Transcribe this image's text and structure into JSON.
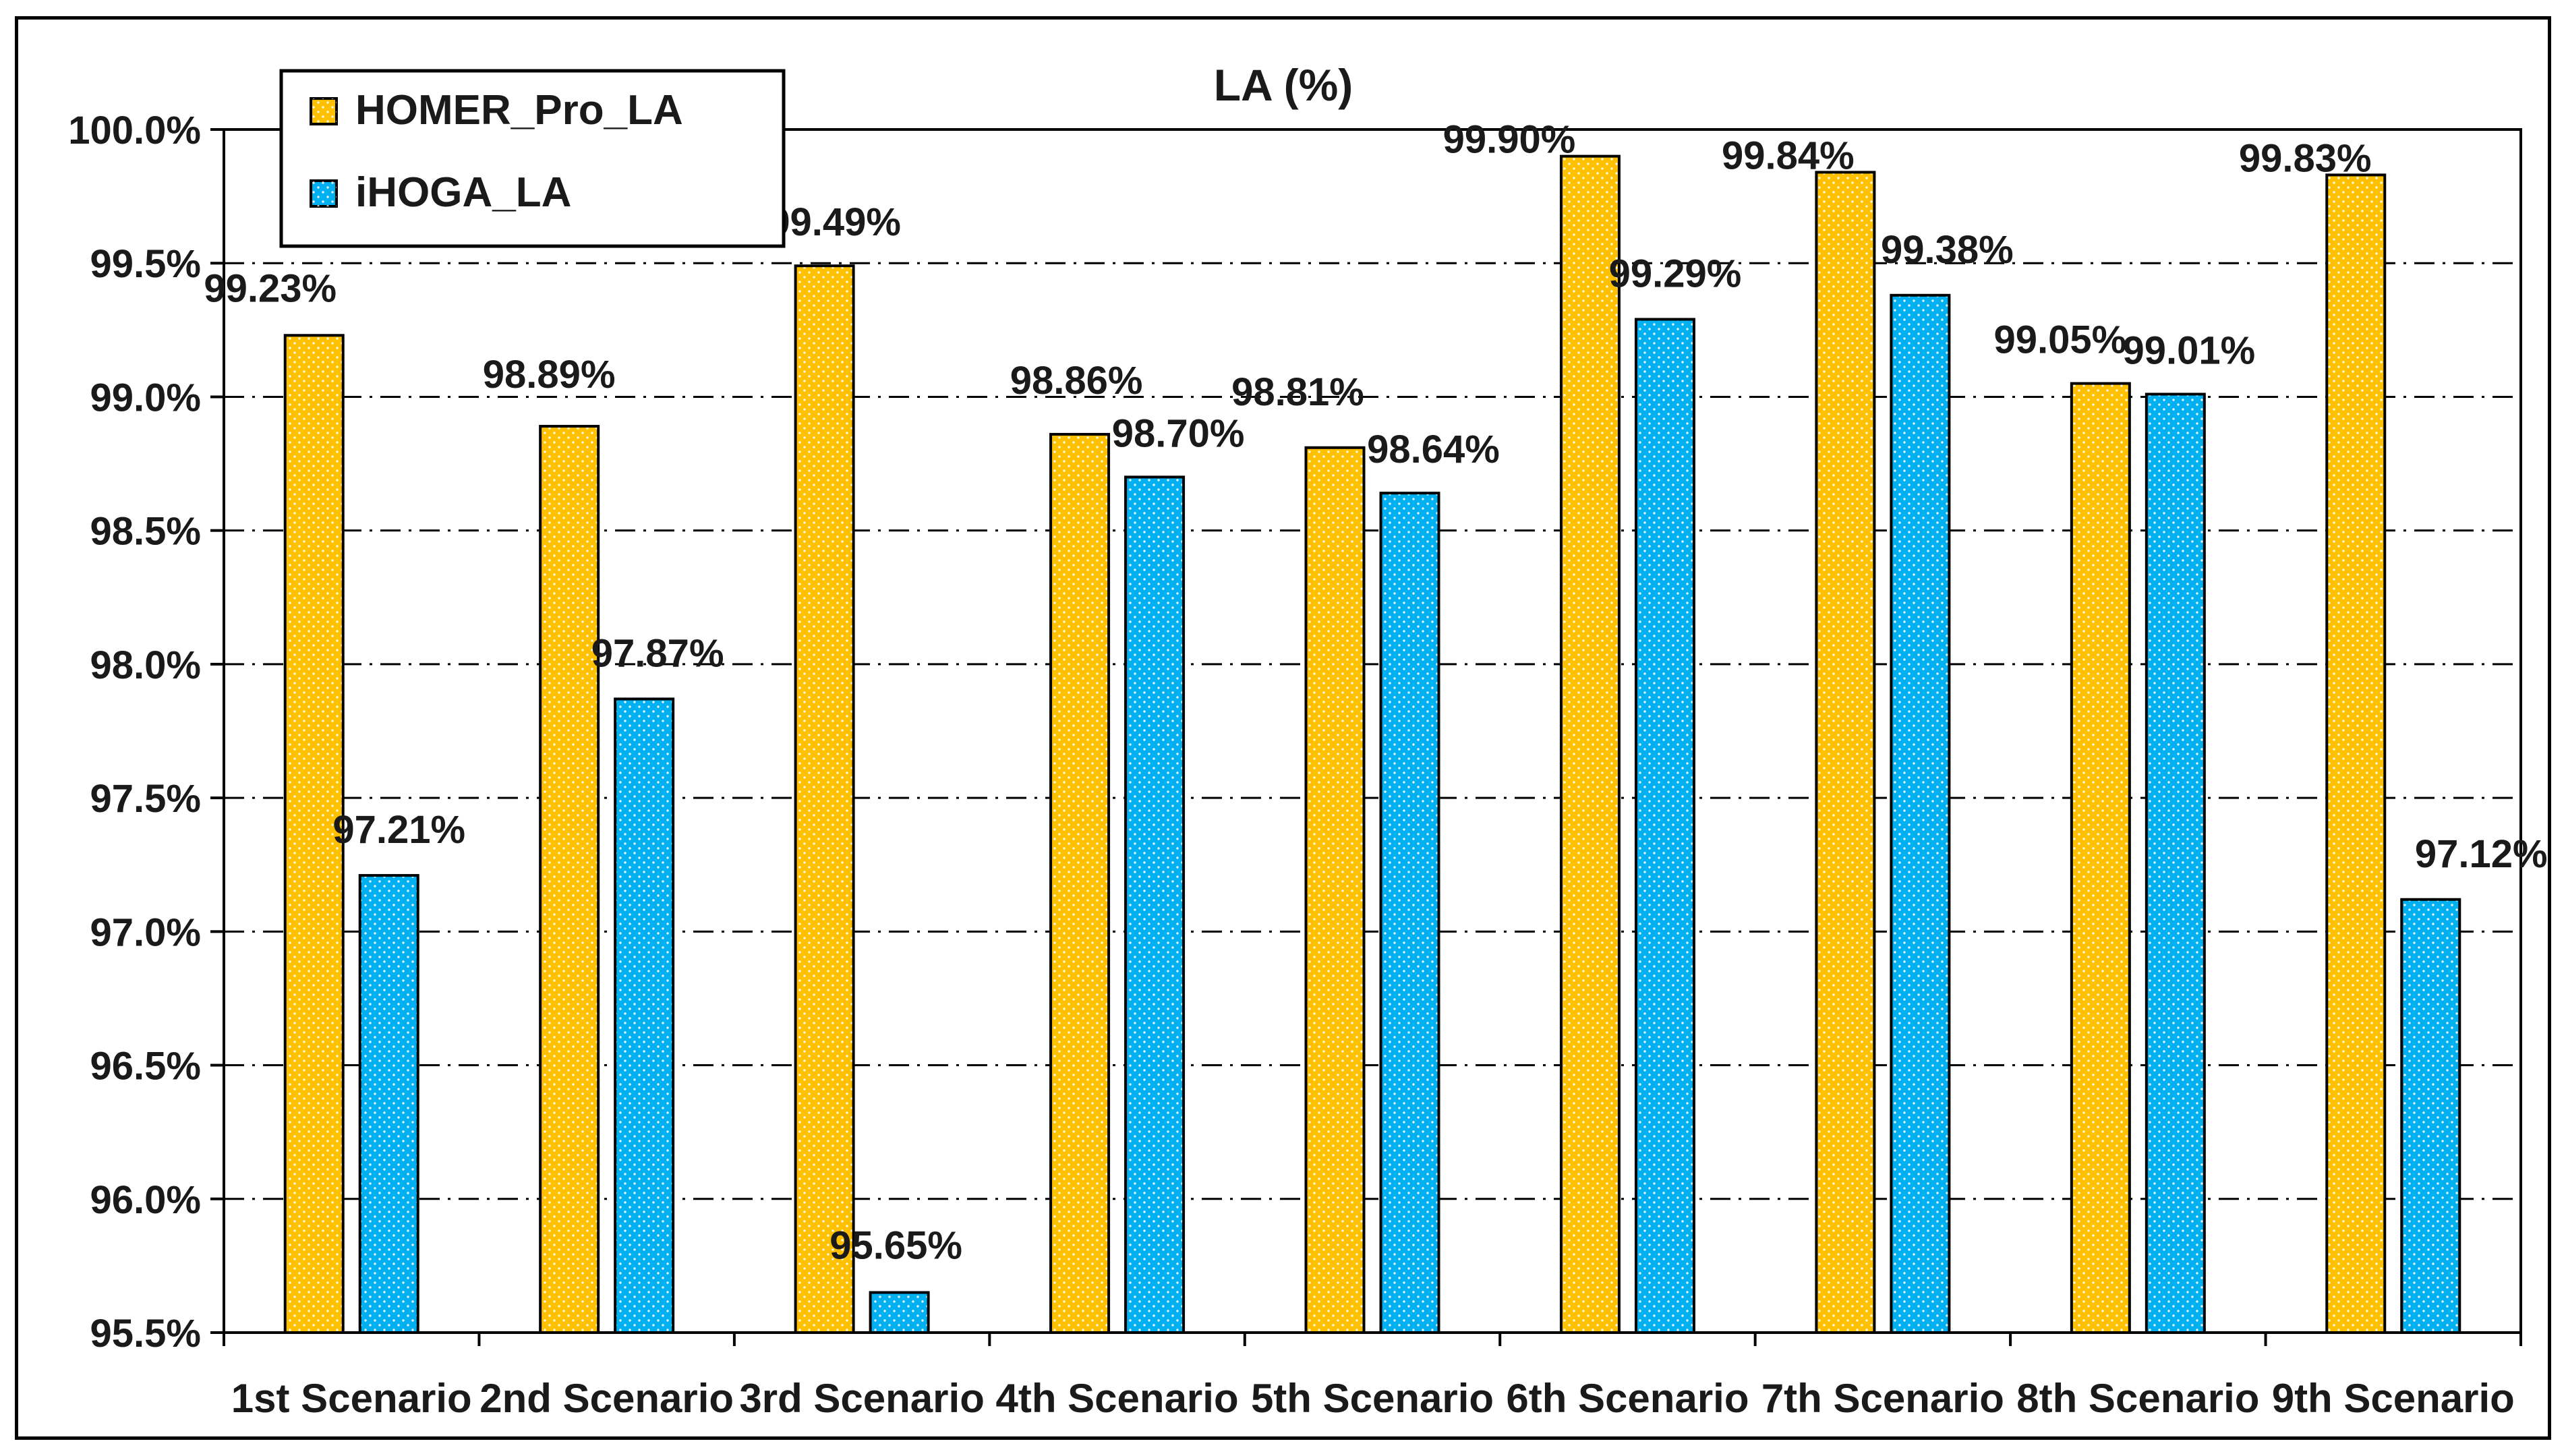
{
  "chart_data": {
    "type": "bar",
    "title": "LA (%)",
    "xlabel": "",
    "ylabel": "",
    "ylim": [
      95.5,
      100.0
    ],
    "ytick_step": 0.5,
    "ytick_labels": [
      "95.5%",
      "96.0%",
      "96.5%",
      "97.0%",
      "97.5%",
      "98.0%",
      "98.5%",
      "99.0%",
      "99.5%",
      "100.0%"
    ],
    "grid": true,
    "legend_position": "top-left",
    "categories": [
      "1st Scenario",
      "2nd Scenario",
      "3rd Scenario",
      "4th Scenario",
      "5th Scenario",
      "6th Scenario",
      "7th Scenario",
      "8th Scenario",
      "9th Scenario"
    ],
    "series": [
      {
        "name": "HOMER_Pro_LA",
        "color": "#FFC000",
        "values": [
          99.23,
          98.89,
          99.49,
          98.86,
          98.81,
          99.9,
          99.84,
          99.05,
          99.83
        ],
        "labels": [
          "99.23%",
          "98.89%",
          "99.49%",
          "98.86%",
          "98.81%",
          "99.90%",
          "99.84%",
          "99.05%",
          "99.83%"
        ]
      },
      {
        "name": "iHOGA_LA",
        "color": "#00B0F0",
        "values": [
          97.21,
          97.87,
          95.65,
          98.7,
          98.64,
          99.29,
          99.38,
          99.01,
          97.12
        ],
        "labels": [
          "97.21%",
          "97.87%",
          "95.65%",
          "98.70%",
          "98.64%",
          "99.29%",
          "99.38%",
          "99.01%",
          "97.12%"
        ]
      }
    ]
  }
}
